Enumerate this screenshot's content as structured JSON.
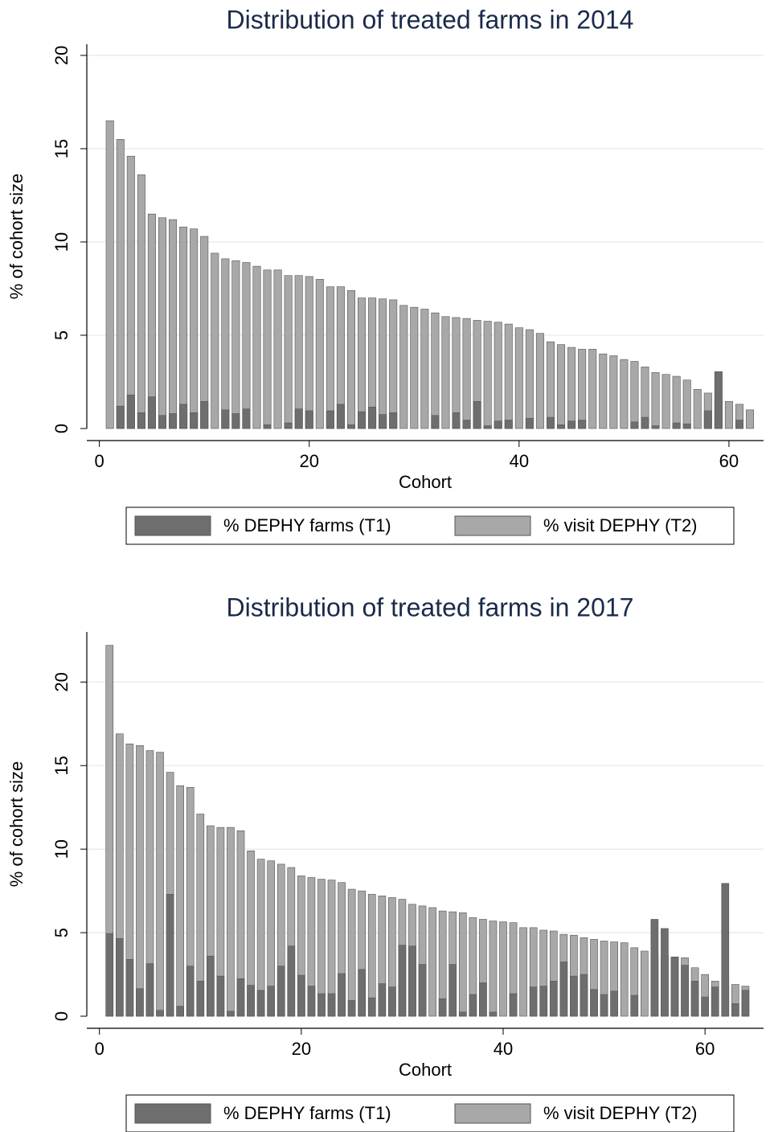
{
  "chart_data": [
    {
      "type": "bar",
      "title": "Distribution of treated farms in 2014",
      "x_label": "Cohort",
      "y_label": "% of cohort size",
      "x": [
        1,
        2,
        3,
        4,
        5,
        6,
        7,
        8,
        9,
        10,
        11,
        12,
        13,
        14,
        15,
        16,
        17,
        18,
        19,
        20,
        21,
        22,
        23,
        24,
        25,
        26,
        27,
        28,
        29,
        30,
        31,
        32,
        33,
        34,
        35,
        36,
        37,
        38,
        39,
        40,
        41,
        42,
        43,
        44,
        45,
        46,
        47,
        48,
        49,
        50,
        51,
        52,
        53,
        54,
        55,
        56,
        57,
        58,
        59,
        60,
        61,
        62
      ],
      "series": [
        {
          "name": "% DEPHY farms (T1)",
          "color": "#6e6e6e",
          "values": [
            0,
            1.2,
            1.8,
            0.85,
            1.7,
            0.7,
            0.8,
            1.3,
            0.85,
            1.45,
            0,
            1.0,
            0.8,
            1.05,
            0,
            0.2,
            0,
            0.3,
            1.05,
            0.95,
            0,
            0.95,
            1.3,
            0.2,
            0.9,
            1.15,
            0.75,
            0.85,
            0,
            0,
            0,
            0.7,
            0,
            0.85,
            0.45,
            1.45,
            0.15,
            0.4,
            0.45,
            0,
            0.55,
            0,
            0.6,
            0.2,
            0.4,
            0.45,
            0,
            0,
            0,
            0,
            0.35,
            0.6,
            0.15,
            0,
            0.3,
            0.25,
            0,
            0.95,
            3.05,
            0,
            0.45,
            0
          ]
        },
        {
          "name": "% visit DEPHY (T2)",
          "color": "#a8a8a8",
          "values": [
            16.5,
            15.5,
            14.6,
            13.6,
            11.5,
            11.3,
            11.2,
            10.8,
            10.7,
            10.3,
            9.4,
            9.1,
            9.0,
            8.9,
            8.7,
            8.5,
            8.5,
            8.2,
            8.2,
            8.15,
            8.0,
            7.6,
            7.6,
            7.4,
            7.0,
            7.0,
            6.95,
            6.9,
            6.6,
            6.5,
            6.4,
            6.2,
            6.0,
            5.95,
            5.9,
            5.8,
            5.75,
            5.7,
            5.6,
            5.4,
            5.3,
            5.1,
            4.65,
            4.5,
            4.35,
            4.25,
            4.25,
            4.0,
            3.9,
            3.7,
            3.6,
            3.3,
            3.0,
            2.9,
            2.8,
            2.6,
            2.1,
            1.9,
            1.5,
            1.45,
            1.3,
            1.0
          ]
        }
      ],
      "xlim": [
        -1.2,
        63.3
      ],
      "ylim": [
        0,
        20.6
      ],
      "xticks": [
        0,
        20,
        40,
        60
      ],
      "yticks": [
        0,
        5,
        10,
        15,
        20
      ],
      "grid": true,
      "legend": "bottom"
    },
    {
      "type": "bar",
      "title": "Distribution of treated farms in 2017",
      "x_label": "Cohort",
      "y_label": "% of cohort size",
      "x": [
        1,
        2,
        3,
        4,
        5,
        6,
        7,
        8,
        9,
        10,
        11,
        12,
        13,
        14,
        15,
        16,
        17,
        18,
        19,
        20,
        21,
        22,
        23,
        24,
        25,
        26,
        27,
        28,
        29,
        30,
        31,
        32,
        33,
        34,
        35,
        36,
        37,
        38,
        39,
        40,
        41,
        42,
        43,
        44,
        45,
        46,
        47,
        48,
        49,
        50,
        51,
        52,
        53,
        54,
        55,
        56,
        57,
        58,
        59,
        60,
        61,
        62,
        63,
        64
      ],
      "series": [
        {
          "name": "% DEPHY farms (T1)",
          "color": "#6e6e6e",
          "values": [
            4.95,
            4.65,
            3.4,
            1.65,
            3.15,
            0.35,
            7.3,
            0.6,
            3.0,
            2.1,
            3.6,
            2.4,
            0.3,
            2.25,
            1.85,
            1.55,
            1.8,
            3.0,
            4.2,
            2.45,
            1.8,
            1.35,
            1.35,
            2.55,
            0.95,
            2.8,
            1.1,
            1.95,
            1.75,
            4.25,
            4.2,
            3.1,
            0,
            1.05,
            3.1,
            0.25,
            1.3,
            2.0,
            0.25,
            0,
            1.35,
            0,
            1.75,
            1.8,
            2.1,
            3.25,
            2.4,
            2.5,
            1.6,
            1.3,
            1.5,
            0,
            1.25,
            0,
            5.8,
            5.25,
            3.55,
            3.05,
            2.1,
            1.15,
            1.75,
            7.95,
            0.75,
            1.55
          ]
        },
        {
          "name": "% visit DEPHY (T2)",
          "color": "#a8a8a8",
          "values": [
            22.2,
            16.9,
            16.3,
            16.2,
            15.9,
            15.8,
            14.6,
            13.8,
            13.7,
            12.1,
            11.4,
            11.3,
            11.3,
            11.1,
            9.9,
            9.4,
            9.3,
            9.1,
            8.9,
            8.4,
            8.3,
            8.2,
            8.15,
            8.0,
            7.6,
            7.5,
            7.3,
            7.2,
            7.1,
            7.0,
            6.7,
            6.6,
            6.5,
            6.3,
            6.25,
            6.2,
            5.9,
            5.8,
            5.7,
            5.65,
            5.6,
            5.3,
            5.3,
            5.15,
            5.1,
            4.9,
            4.85,
            4.7,
            4.6,
            4.5,
            4.45,
            4.4,
            4.1,
            3.9,
            3.7,
            3.6,
            3.5,
            3.5,
            2.9,
            2.5,
            2.1,
            2.0,
            1.9,
            1.8
          ]
        }
      ],
      "xlim": [
        -1.25,
        65.8
      ],
      "ylim": [
        0,
        23
      ],
      "xticks": [
        0,
        20,
        40,
        60
      ],
      "yticks": [
        0,
        5,
        10,
        15,
        20
      ],
      "grid": true,
      "legend": "bottom"
    }
  ]
}
